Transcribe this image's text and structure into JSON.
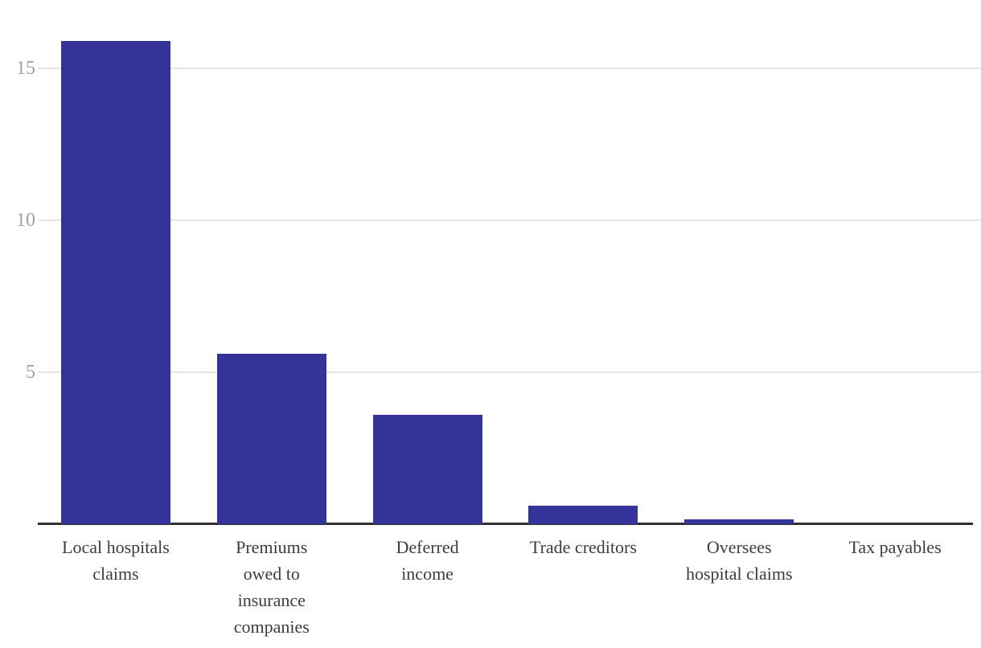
{
  "chart_data": {
    "type": "bar",
    "title": "",
    "xlabel": "",
    "ylabel": "",
    "categories": [
      "Local hospitals claims",
      "Premiums owed to insurance companies",
      "Deferred income",
      "Trade creditors",
      "Oversees hospital claims",
      "Tax payables"
    ],
    "category_lines": [
      [
        "Local hospitals",
        "claims"
      ],
      [
        "Premiums",
        "owed to",
        "insurance",
        "companies"
      ],
      [
        "Deferred",
        "income"
      ],
      [
        "Trade creditors"
      ],
      [
        "Oversees",
        "hospital claims"
      ],
      [
        "Tax payables"
      ]
    ],
    "values": [
      15.9,
      5.6,
      3.6,
      0.6,
      0.15,
      0
    ],
    "yticks": [
      5,
      10,
      15
    ],
    "ylim": [
      0,
      16.5
    ],
    "grid": true,
    "legend": false
  },
  "colors": {
    "bar": "#33339A",
    "gridline": "#E5E5E5",
    "axis_line": "#2F2F2F",
    "tick_label": "#A2A2A2",
    "category_label": "#3C3C3C",
    "background": "#FFFFFF"
  }
}
